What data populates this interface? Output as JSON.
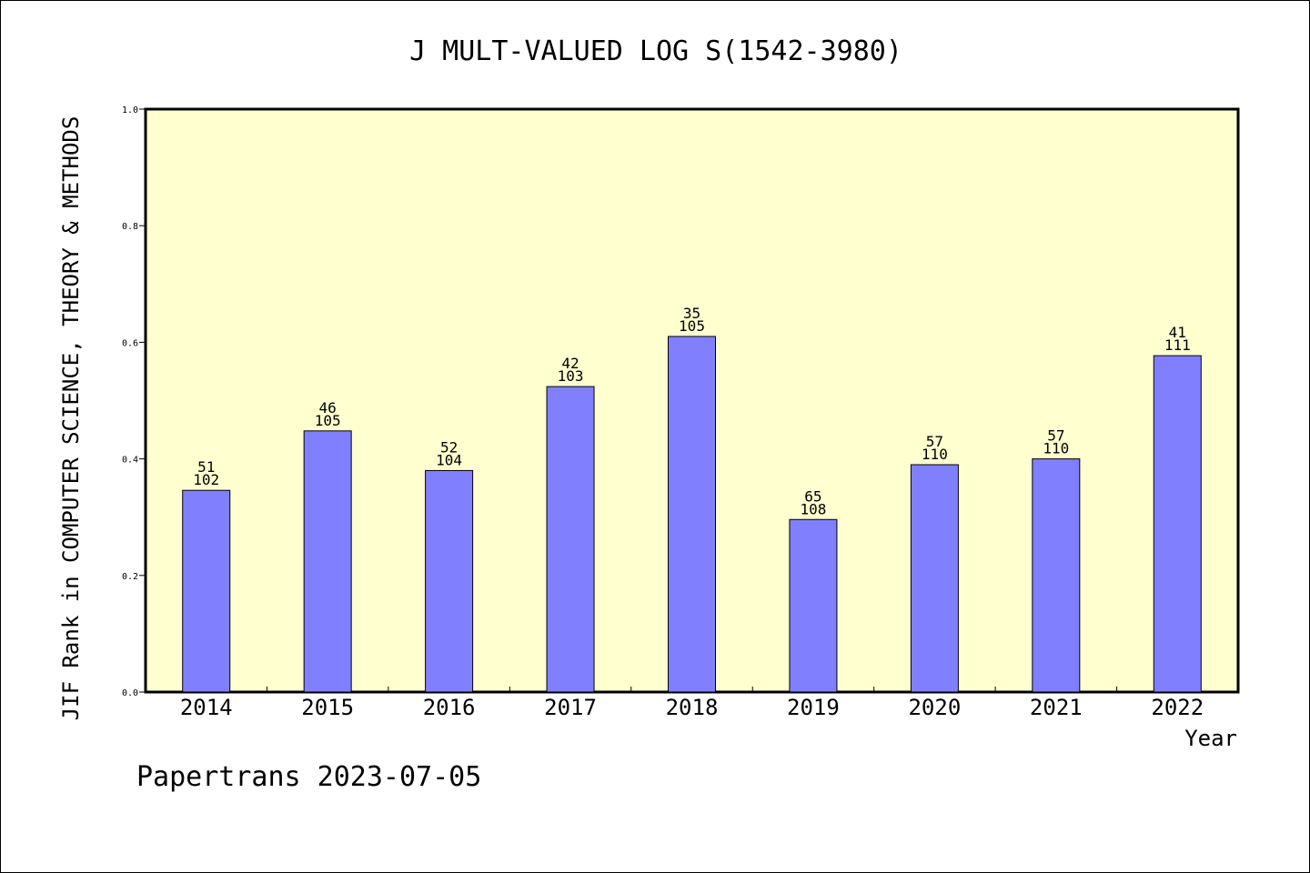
{
  "chart_data": {
    "type": "bar",
    "title": "J MULT-VALUED LOG S(1542-3980)",
    "xlabel": "Year",
    "ylabel": "JIF Rank in COMPUTER SCIENCE, THEORY & METHODS",
    "ylim": [
      0,
      1.0
    ],
    "yticks": [
      "0.0",
      "0.2",
      "0.4",
      "0.6",
      "0.8",
      "1.0"
    ],
    "grid": false,
    "categories": [
      "2014",
      "2015",
      "2016",
      "2017",
      "2018",
      "2019",
      "2020",
      "2021",
      "2022"
    ],
    "values": [
      0.346,
      0.448,
      0.38,
      0.524,
      0.61,
      0.296,
      0.39,
      0.4,
      0.577
    ],
    "rank": [
      "51",
      "46",
      "52",
      "42",
      "35",
      "65",
      "57",
      "57",
      "41"
    ],
    "total": [
      "102",
      "105",
      "104",
      "103",
      "105",
      "108",
      "110",
      "110",
      "111"
    ],
    "colors": {
      "plot_bg": "#ffffd0",
      "bar": "#8080ff",
      "bar_edge": "#000000"
    }
  },
  "footer": "Papertrans 2023-07-05"
}
